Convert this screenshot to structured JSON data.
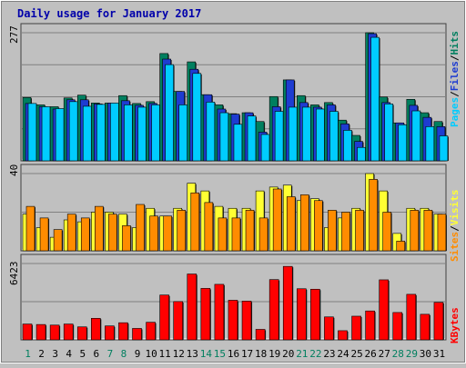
{
  "chart_data": [
    {
      "type": "bar",
      "title": "Daily usage for January 2017",
      "panel": "hits-files-pages",
      "categories": [
        "1",
        "2",
        "3",
        "4",
        "5",
        "6",
        "7",
        "8",
        "9",
        "10",
        "11",
        "12",
        "13",
        "14",
        "15",
        "16",
        "17",
        "18",
        "19",
        "20",
        "21",
        "22",
        "23",
        "24",
        "25",
        "26",
        "27",
        "28",
        "29",
        "30",
        "31"
      ],
      "ymax_label": "277",
      "ylim": [
        0,
        277
      ],
      "grid": true,
      "legend": {
        "labels": [
          "Pages",
          "Files",
          "Hits"
        ],
        "separator": "/",
        "placement": "right"
      },
      "series": [
        {
          "name": "Hits",
          "color": "#007f5f",
          "values": [
            137,
            121,
            117,
            136,
            142,
            125,
            125,
            141,
            124,
            128,
            232,
            150,
            214,
            143,
            121,
            102,
            104,
            85,
            139,
            175,
            141,
            121,
            126,
            88,
            55,
            277,
            138,
            82,
            133,
            104,
            85
          ]
        },
        {
          "name": "Files",
          "color": "#1e3cd1",
          "values": [
            124,
            117,
            112,
            132,
            132,
            123,
            125,
            130,
            120,
            124,
            220,
            150,
            198,
            143,
            112,
            101,
            104,
            62,
            117,
            175,
            126,
            116,
            121,
            80,
            42,
            275,
            126,
            82,
            120,
            94,
            74
          ]
        },
        {
          "name": "Pages",
          "color": "#00ccff",
          "values": [
            124,
            117,
            113,
            128,
            118,
            122,
            125,
            121,
            116,
            121,
            208,
            121,
            189,
            127,
            104,
            79,
            97,
            57,
            107,
            116,
            116,
            112,
            107,
            66,
            29,
            267,
            123,
            78,
            108,
            74,
            54
          ]
        }
      ]
    },
    {
      "type": "bar",
      "panel": "visits-sites",
      "categories": [
        "1",
        "2",
        "3",
        "4",
        "5",
        "6",
        "7",
        "8",
        "9",
        "10",
        "11",
        "12",
        "13",
        "14",
        "15",
        "16",
        "17",
        "18",
        "19",
        "20",
        "21",
        "22",
        "23",
        "24",
        "25",
        "26",
        "27",
        "28",
        "29",
        "30",
        "31"
      ],
      "ymax_label": "40",
      "ylim": [
        0,
        40
      ],
      "grid": true,
      "legend": {
        "labels": [
          "Sites",
          "Visits"
        ],
        "separator": "/",
        "placement": "right"
      },
      "series": [
        {
          "name": "Visits",
          "color": "#ffff33",
          "values": [
            19,
            12,
            7,
            16,
            15,
            20,
            20,
            19,
            12,
            22,
            18,
            22,
            35,
            31,
            23,
            22,
            22,
            31,
            33,
            34,
            26,
            27,
            12,
            17,
            22,
            40,
            31,
            9,
            22,
            22,
            19
          ]
        },
        {
          "name": "Sites",
          "color": "#ff8c00",
          "values": [
            23,
            17,
            11,
            19,
            17,
            23,
            19,
            13,
            24,
            18,
            18,
            21,
            30,
            25,
            17,
            17,
            21,
            17,
            32,
            28,
            29,
            26,
            21,
            20,
            21,
            37,
            20,
            5,
            21,
            21,
            19
          ]
        }
      ]
    },
    {
      "type": "bar",
      "panel": "kbytes",
      "categories": [
        "1",
        "2",
        "3",
        "4",
        "5",
        "6",
        "7",
        "8",
        "9",
        "10",
        "11",
        "12",
        "13",
        "14",
        "15",
        "16",
        "17",
        "18",
        "19",
        "20",
        "21",
        "22",
        "23",
        "24",
        "25",
        "26",
        "27",
        "28",
        "29",
        "30",
        "31"
      ],
      "ymax_label": "6423",
      "ylim": [
        0,
        6423
      ],
      "grid": true,
      "legend": {
        "labels": [
          "KBytes"
        ],
        "separator": "",
        "placement": "right"
      },
      "series": [
        {
          "name": "KBytes",
          "color": "#ff0000",
          "values": [
            1330,
            1290,
            1240,
            1330,
            1090,
            1810,
            1170,
            1440,
            960,
            1480,
            3770,
            3220,
            5540,
            4330,
            4670,
            3330,
            3260,
            880,
            5070,
            6180,
            4300,
            4260,
            1930,
            770,
            1990,
            2430,
            5050,
            2300,
            3830,
            2150,
            3150
          ]
        }
      ]
    }
  ],
  "x_label_colors": {
    "weekday": "#007f5f",
    "weekend": "#007f5f"
  }
}
